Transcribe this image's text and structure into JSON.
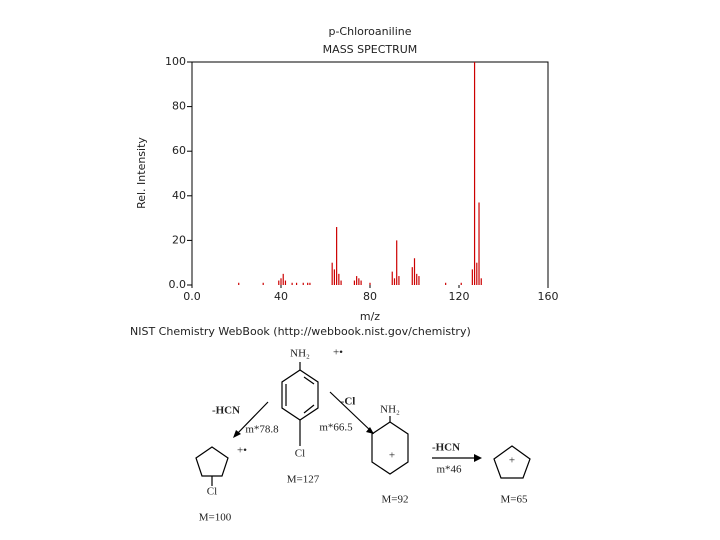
{
  "chart_data": {
    "type": "stick",
    "title": "p-Chloroaniline",
    "subtitle": "MASS SPECTRUM",
    "x_label": "m/z",
    "y_label": "Rel. Intensity",
    "x": [
      21,
      32,
      39,
      40,
      41,
      42,
      45,
      47,
      50,
      52,
      53,
      63,
      64,
      65,
      66,
      67,
      73,
      74,
      75,
      76,
      80,
      90,
      91,
      92,
      93,
      99,
      100,
      101,
      102,
      114,
      121,
      126,
      127,
      128,
      129,
      130
    ],
    "values": [
      1,
      1,
      2,
      3,
      5,
      2,
      1,
      1,
      1,
      1,
      1,
      10,
      7,
      26,
      5,
      2,
      2,
      4,
      3,
      2,
      1,
      6,
      3,
      20,
      4,
      8,
      12,
      5,
      4,
      1,
      1,
      7,
      100,
      10,
      37,
      3
    ],
    "color": "#cc0000",
    "xlim": [
      0,
      160
    ],
    "xticks": [
      {
        "value": 0,
        "label": "0.0"
      },
      40,
      80,
      120,
      160
    ],
    "ylim": [
      0,
      100
    ],
    "yticks": [
      {
        "value": 0,
        "label": "0.0"
      },
      20,
      40,
      60,
      80,
      100
    ],
    "footnote": "NIST Chemistry WebBook (http://webbook.nist.gov/chemistry)"
  },
  "scheme": {
    "labels": [
      "NH₂",
      "+•",
      "-HCN",
      "-Cl",
      "m*78.8",
      "m*66.5",
      "Cl",
      "M=127",
      "+•",
      "Cl",
      "M=100",
      "NH₂",
      "+",
      "M=92",
      "-HCN",
      "m*46",
      "+",
      "M=65"
    ]
  }
}
